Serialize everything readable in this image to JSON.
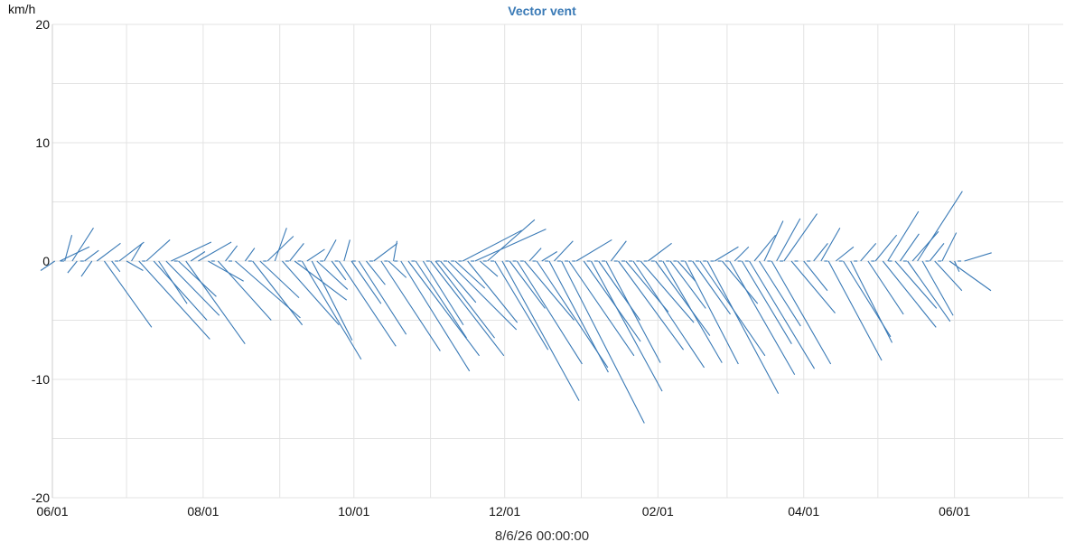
{
  "chart_data": {
    "type": "vector",
    "title": "Vector vent",
    "ylabel": "km/h",
    "footer_label": "8/6/26 00:00:00",
    "ylim": [
      -20,
      20
    ],
    "y_ticks": [
      20,
      10,
      0,
      -10,
      -20
    ],
    "xlim": [
      "2025-06-01",
      "2026-07-15"
    ],
    "x_ticks": [
      {
        "date": "2025-06-01",
        "label": "06/01"
      },
      {
        "date": "2025-08-01",
        "label": "08/01"
      },
      {
        "date": "2025-10-01",
        "label": "10/01"
      },
      {
        "date": "2025-12-01",
        "label": "12/01"
      },
      {
        "date": "2026-02-01",
        "label": "02/01"
      },
      {
        "date": "2026-04-01",
        "label": "04/01"
      },
      {
        "date": "2026-06-01",
        "label": "06/01"
      }
    ],
    "grid": true,
    "color": "#3a7ab6",
    "vectors": [
      {
        "date": "2025-06-02",
        "u": -1.2,
        "v": -0.8
      },
      {
        "date": "2025-06-04",
        "u": 2.5,
        "v": 1.2
      },
      {
        "date": "2025-06-06",
        "u": 0.6,
        "v": 2.2
      },
      {
        "date": "2025-06-09",
        "u": 1.8,
        "v": 2.8
      },
      {
        "date": "2025-06-11",
        "u": -0.8,
        "v": -1.0
      },
      {
        "date": "2025-06-14",
        "u": 1.2,
        "v": 0.9
      },
      {
        "date": "2025-06-17",
        "u": -0.9,
        "v": -1.3
      },
      {
        "date": "2025-06-19",
        "u": 2.0,
        "v": 1.5
      },
      {
        "date": "2025-06-22",
        "u": 4.0,
        "v": -5.6
      },
      {
        "date": "2025-06-25",
        "u": 0.7,
        "v": -0.9
      },
      {
        "date": "2025-06-28",
        "u": 2.1,
        "v": 1.6
      },
      {
        "date": "2025-07-01",
        "u": 1.4,
        "v": -0.8
      },
      {
        "date": "2025-07-03",
        "u": 0.9,
        "v": 1.5
      },
      {
        "date": "2025-07-06",
        "u": 6.0,
        "v": -6.6
      },
      {
        "date": "2025-07-09",
        "u": 2.0,
        "v": 1.8
      },
      {
        "date": "2025-07-12",
        "u": 4.5,
        "v": -5.0
      },
      {
        "date": "2025-07-14",
        "u": 2.4,
        "v": -3.6
      },
      {
        "date": "2025-07-17",
        "u": 4.5,
        "v": -4.6
      },
      {
        "date": "2025-07-19",
        "u": 3.4,
        "v": 1.6
      },
      {
        "date": "2025-07-22",
        "u": 3.2,
        "v": -3.0
      },
      {
        "date": "2025-07-25",
        "u": 5.0,
        "v": -7.0
      },
      {
        "date": "2025-07-27",
        "u": 1.2,
        "v": 0.8
      },
      {
        "date": "2025-07-30",
        "u": 2.8,
        "v": 1.6
      },
      {
        "date": "2025-08-03",
        "u": 3.0,
        "v": -1.7
      },
      {
        "date": "2025-08-07",
        "u": 4.5,
        "v": -5.0
      },
      {
        "date": "2025-08-10",
        "u": 1.0,
        "v": 1.3
      },
      {
        "date": "2025-08-14",
        "u": 5.5,
        "v": -4.8
      },
      {
        "date": "2025-08-18",
        "u": 0.8,
        "v": 1.1
      },
      {
        "date": "2025-08-21",
        "u": 4.2,
        "v": -5.4
      },
      {
        "date": "2025-08-24",
        "u": 3.3,
        "v": -3.1
      },
      {
        "date": "2025-08-27",
        "u": 2.2,
        "v": 2.1
      },
      {
        "date": "2025-08-30",
        "u": 1.0,
        "v": 2.8
      },
      {
        "date": "2025-09-02",
        "u": 4.8,
        "v": -5.4
      },
      {
        "date": "2025-09-05",
        "u": 1.2,
        "v": 1.5
      },
      {
        "date": "2025-09-07",
        "u": 4.4,
        "v": -3.3
      },
      {
        "date": "2025-09-10",
        "u": 5.0,
        "v": -8.3
      },
      {
        "date": "2025-09-12",
        "u": 1.5,
        "v": 1.0
      },
      {
        "date": "2025-09-14",
        "u": 3.4,
        "v": -6.7
      },
      {
        "date": "2025-09-16",
        "u": 2.6,
        "v": -2.4
      },
      {
        "date": "2025-09-19",
        "u": 1.0,
        "v": 1.8
      },
      {
        "date": "2025-09-22",
        "u": 1.2,
        "v": -1.6
      },
      {
        "date": "2025-09-25",
        "u": 4.8,
        "v": -7.2
      },
      {
        "date": "2025-09-27",
        "u": 0.5,
        "v": 1.8
      },
      {
        "date": "2025-09-30",
        "u": 2.5,
        "v": -3.6
      },
      {
        "date": "2025-10-03",
        "u": 4.0,
        "v": -6.2
      },
      {
        "date": "2025-10-06",
        "u": 1.6,
        "v": -2.0
      },
      {
        "date": "2025-10-09",
        "u": 2.0,
        "v": 1.5
      },
      {
        "date": "2025-10-12",
        "u": 5.0,
        "v": -7.6
      },
      {
        "date": "2025-10-15",
        "u": 1.5,
        "v": -1.4
      },
      {
        "date": "2025-10-17",
        "u": 0.3,
        "v": 1.7
      },
      {
        "date": "2025-10-20",
        "u": 5.8,
        "v": -9.3
      },
      {
        "date": "2025-10-23",
        "u": 6.0,
        "v": -8.0
      },
      {
        "date": "2025-10-26",
        "u": 4.3,
        "v": -6.5
      },
      {
        "date": "2025-10-29",
        "u": 3.4,
        "v": -5.4
      },
      {
        "date": "2025-11-01",
        "u": 6.2,
        "v": -8.0
      },
      {
        "date": "2025-11-03",
        "u": 5.0,
        "v": -6.5
      },
      {
        "date": "2025-11-05",
        "u": 3.0,
        "v": -3.5
      },
      {
        "date": "2025-11-08",
        "u": 5.8,
        "v": -5.8
      },
      {
        "date": "2025-11-11",
        "u": 2.5,
        "v": -2.3
      },
      {
        "date": "2025-11-14",
        "u": 5.0,
        "v": 2.6
      },
      {
        "date": "2025-11-16",
        "u": 4.2,
        "v": -5.2
      },
      {
        "date": "2025-11-19",
        "u": 6.0,
        "v": 2.7
      },
      {
        "date": "2025-11-21",
        "u": 1.5,
        "v": -1.3
      },
      {
        "date": "2025-11-24",
        "u": 4.0,
        "v": 3.5
      },
      {
        "date": "2025-11-27",
        "u": 4.5,
        "v": -7.5
      },
      {
        "date": "2025-11-30",
        "u": 6.5,
        "v": -11.8
      },
      {
        "date": "2025-12-03",
        "u": 3.0,
        "v": -4.0
      },
      {
        "date": "2025-12-06",
        "u": 5.5,
        "v": -8.7
      },
      {
        "date": "2025-12-09",
        "u": 4.2,
        "v": -5.0
      },
      {
        "date": "2025-12-11",
        "u": 1.0,
        "v": 1.1
      },
      {
        "date": "2025-12-14",
        "u": 6.0,
        "v": -9.0
      },
      {
        "date": "2025-12-16",
        "u": 1.3,
        "v": 0.8
      },
      {
        "date": "2025-12-19",
        "u": 5.0,
        "v": -9.4
      },
      {
        "date": "2025-12-21",
        "u": 1.6,
        "v": 1.7
      },
      {
        "date": "2025-12-24",
        "u": 7.0,
        "v": -13.7
      },
      {
        "date": "2025-12-27",
        "u": 5.5,
        "v": -8.0
      },
      {
        "date": "2025-12-30",
        "u": 3.0,
        "v": 1.8
      },
      {
        "date": "2026-01-02",
        "u": 4.8,
        "v": -6.8
      },
      {
        "date": "2026-01-05",
        "u": 6.0,
        "v": -11.0
      },
      {
        "date": "2026-01-08",
        "u": 3.5,
        "v": -5.0
      },
      {
        "date": "2026-01-11",
        "u": 4.6,
        "v": -8.6
      },
      {
        "date": "2026-01-13",
        "u": 1.3,
        "v": 1.7
      },
      {
        "date": "2026-01-16",
        "u": 5.5,
        "v": -7.5
      },
      {
        "date": "2026-01-19",
        "u": 3.6,
        "v": -4.3
      },
      {
        "date": "2026-01-22",
        "u": 6.0,
        "v": -9.0
      },
      {
        "date": "2026-01-25",
        "u": 4.5,
        "v": -5.2
      },
      {
        "date": "2026-01-28",
        "u": 2.0,
        "v": 1.5
      },
      {
        "date": "2026-01-31",
        "u": 4.6,
        "v": -6.3
      },
      {
        "date": "2026-02-03",
        "u": 5.0,
        "v": -8.6
      },
      {
        "date": "2026-02-06",
        "u": 3.0,
        "v": -4.0
      },
      {
        "date": "2026-02-09",
        "u": 1.5,
        "v": -1.7
      },
      {
        "date": "2026-02-12",
        "u": 4.5,
        "v": -8.7
      },
      {
        "date": "2026-02-15",
        "u": 3.2,
        "v": -4.5
      },
      {
        "date": "2026-02-18",
        "u": 5.5,
        "v": -8.0
      },
      {
        "date": "2026-02-21",
        "u": 6.0,
        "v": -11.2
      },
      {
        "date": "2026-02-24",
        "u": 2.0,
        "v": 1.2
      },
      {
        "date": "2026-02-27",
        "u": 3.0,
        "v": -3.6
      },
      {
        "date": "2026-03-02",
        "u": 5.5,
        "v": -9.6
      },
      {
        "date": "2026-03-04",
        "u": 1.2,
        "v": 1.2
      },
      {
        "date": "2026-03-07",
        "u": 4.2,
        "v": -7.0
      },
      {
        "date": "2026-03-10",
        "u": 5.5,
        "v": -9.1
      },
      {
        "date": "2026-03-12",
        "u": 1.8,
        "v": 2.2
      },
      {
        "date": "2026-03-14",
        "u": 3.5,
        "v": -5.5
      },
      {
        "date": "2026-03-16",
        "u": 1.6,
        "v": 3.4
      },
      {
        "date": "2026-03-19",
        "u": 5.0,
        "v": -8.7
      },
      {
        "date": "2026-03-21",
        "u": 2.0,
        "v": 3.6
      },
      {
        "date": "2026-03-24",
        "u": 2.8,
        "v": 4.0
      },
      {
        "date": "2026-03-27",
        "u": 3.7,
        "v": -4.4
      },
      {
        "date": "2026-04-01",
        "u": 2.0,
        "v": -2.5
      },
      {
        "date": "2026-04-05",
        "u": 1.2,
        "v": 1.5
      },
      {
        "date": "2026-04-08",
        "u": 1.6,
        "v": 2.8
      },
      {
        "date": "2026-04-11",
        "u": 4.5,
        "v": -8.4
      },
      {
        "date": "2026-04-14",
        "u": 1.5,
        "v": 1.2
      },
      {
        "date": "2026-04-17",
        "u": 4.0,
        "v": -6.4
      },
      {
        "date": "2026-04-20",
        "u": 3.5,
        "v": -6.9
      },
      {
        "date": "2026-04-24",
        "u": 1.3,
        "v": 1.5
      },
      {
        "date": "2026-04-27",
        "u": 3.0,
        "v": -4.5
      },
      {
        "date": "2026-04-30",
        "u": 1.8,
        "v": 2.2
      },
      {
        "date": "2026-05-03",
        "u": 4.5,
        "v": -5.6
      },
      {
        "date": "2026-05-05",
        "u": 2.6,
        "v": 4.2
      },
      {
        "date": "2026-05-08",
        "u": 3.5,
        "v": -4.0
      },
      {
        "date": "2026-05-10",
        "u": 1.6,
        "v": 2.3
      },
      {
        "date": "2026-05-13",
        "u": 3.6,
        "v": -5.1
      },
      {
        "date": "2026-05-15",
        "u": 2.2,
        "v": 2.5
      },
      {
        "date": "2026-05-17",
        "u": 3.8,
        "v": 5.9
      },
      {
        "date": "2026-05-19",
        "u": 2.6,
        "v": -4.6
      },
      {
        "date": "2026-05-22",
        "u": 1.2,
        "v": 1.5
      },
      {
        "date": "2026-05-24",
        "u": 2.3,
        "v": -2.5
      },
      {
        "date": "2026-05-27",
        "u": 1.2,
        "v": 2.4
      },
      {
        "date": "2026-05-30",
        "u": 3.5,
        "v": -2.5
      },
      {
        "date": "2026-06-01",
        "u": 0.4,
        "v": -0.9
      },
      {
        "date": "2026-06-05",
        "u": 2.3,
        "v": 0.7
      }
    ],
    "calm_points": [
      "2025-06-05",
      "2025-06-13",
      "2025-06-27",
      "2025-07-08",
      "2025-07-21",
      "2025-08-05",
      "2025-08-12",
      "2025-08-20",
      "2025-08-26",
      "2025-09-04",
      "2025-09-09",
      "2025-09-18",
      "2025-09-24",
      "2025-10-01",
      "2025-10-08",
      "2025-10-14",
      "2025-10-18",
      "2025-10-25",
      "2025-10-31",
      "2025-11-04",
      "2025-11-07",
      "2025-11-10",
      "2025-11-13",
      "2025-11-18",
      "2025-11-23",
      "2025-11-26",
      "2025-12-02",
      "2025-12-05",
      "2025-12-08",
      "2025-12-13",
      "2025-12-18",
      "2025-12-23",
      "2025-12-26",
      "2025-12-29",
      "2026-01-04",
      "2026-01-07",
      "2026-01-10",
      "2026-01-15",
      "2026-01-18",
      "2026-01-21",
      "2026-01-24",
      "2026-01-27",
      "2026-01-30",
      "2026-02-02",
      "2026-02-05",
      "2026-02-08",
      "2026-02-11",
      "2026-02-14",
      "2026-02-17",
      "2026-02-20",
      "2026-02-23",
      "2026-02-26",
      "2026-03-01",
      "2026-03-06",
      "2026-03-09",
      "2026-03-18",
      "2026-03-23",
      "2026-03-29",
      "2026-04-03",
      "2026-04-10",
      "2026-04-16",
      "2026-04-22",
      "2026-04-29",
      "2026-05-06",
      "2026-05-12",
      "2026-05-21",
      "2026-05-26",
      "2026-06-03"
    ]
  }
}
